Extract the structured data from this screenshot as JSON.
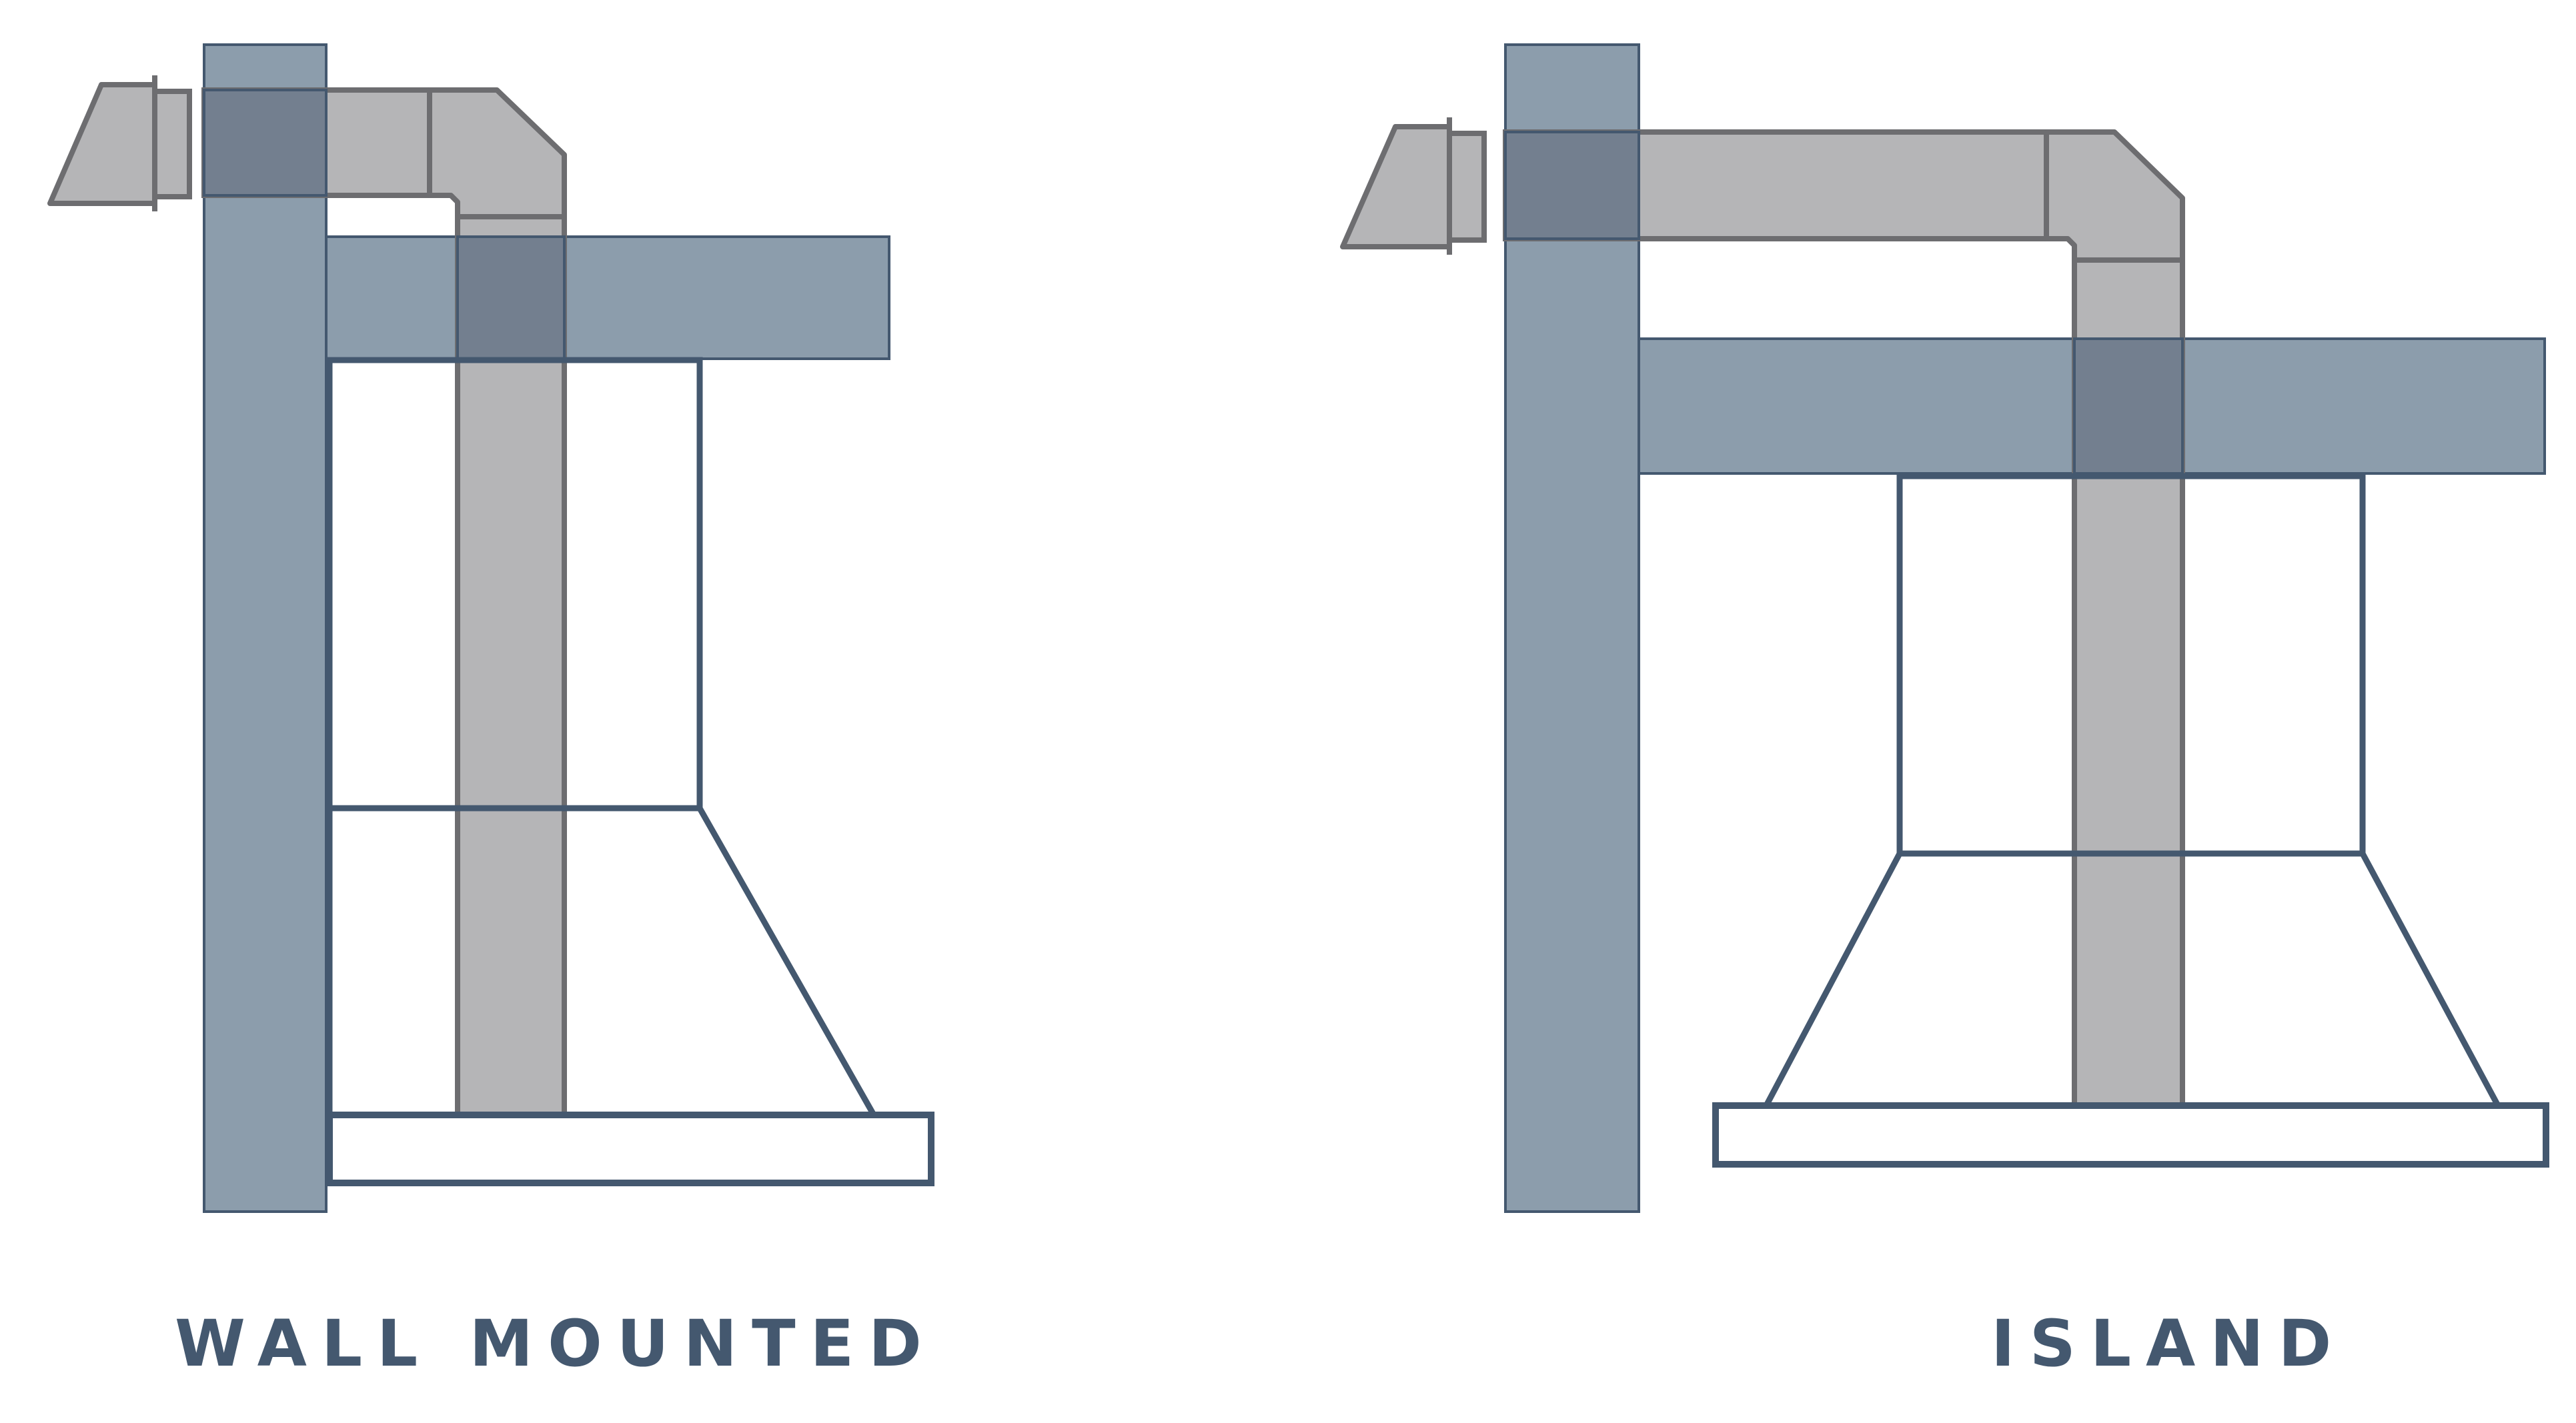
{
  "diagrams": [
    {
      "id": "wall",
      "caption": "WALL MOUNTED",
      "type": "wall-mounted range hood ducting"
    },
    {
      "id": "island",
      "caption": "ISLAND",
      "type": "island range hood ducting"
    }
  ],
  "colors": {
    "structure_fill": "#8c9dac",
    "structure_stroke": "#44586f",
    "duct_fill": "#b5b5b7",
    "duct_stroke": "#6d6d70",
    "overlap_fill": "#737f8f",
    "hood_stroke": "#44586f",
    "label_color": "#44586f",
    "background": "#ffffff"
  }
}
